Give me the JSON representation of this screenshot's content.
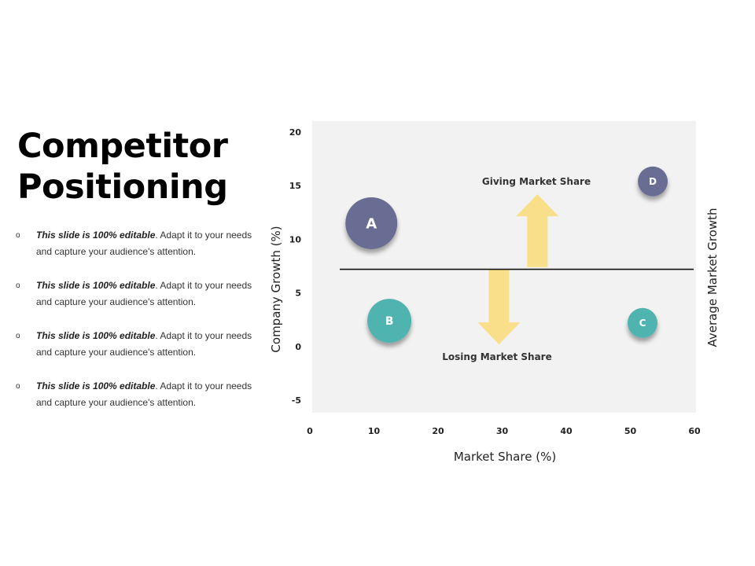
{
  "slide": {
    "title_line1": "Competitor",
    "title_line2": "Positioning",
    "bullet_marker": "o",
    "bullets": [
      {
        "bold": "This slide is 100% editable",
        "text": ". Adapt it to your needs and capture your audience's attention."
      },
      {
        "bold": "This slide is 100% editable",
        "text": ". Adapt it to your needs and capture your audience's attention."
      },
      {
        "bold": "This slide is 100% editable",
        "text": ". Adapt it to your needs and capture your audience's attention."
      },
      {
        "bold": "This slide is 100% editable",
        "text": ". Adapt it to your needs and capture your audience's attention."
      }
    ]
  },
  "chart_data": {
    "type": "scatter",
    "xlabel": "Market Share (%)",
    "ylabel": "Company Growth (%)",
    "right_label": "Average Market Growth",
    "xlim": [
      0,
      60
    ],
    "ylim": [
      -5,
      20
    ],
    "x_ticks": [
      0,
      10,
      20,
      30,
      40,
      50,
      60
    ],
    "y_ticks": [
      20,
      15,
      10,
      5,
      0,
      -5
    ],
    "average_line_y": 7.2,
    "points": [
      {
        "label": "A",
        "x": 9.6,
        "y": 11.5,
        "size": "large",
        "color": "#6a6d93"
      },
      {
        "label": "B",
        "x": 12.4,
        "y": 2.4,
        "size": "medium",
        "color": "#4fb3b0"
      },
      {
        "label": "C",
        "x": 51.9,
        "y": 2.2,
        "size": "small",
        "color": "#4fb3b0"
      },
      {
        "label": "D",
        "x": 53.5,
        "y": 15.4,
        "size": "small",
        "color": "#6a6d93"
      }
    ],
    "annotations": [
      {
        "text": "Giving Market Share",
        "direction": "up",
        "x": 35.5,
        "y_from": 7.4,
        "y_to": 14.2
      },
      {
        "text": "Losing Market Share",
        "direction": "down",
        "x": 29.5,
        "y_from": 7.2,
        "y_to": 0.2
      }
    ],
    "plot_background": "#f2f2f2",
    "arrow_color": "#f9df8a",
    "grid": false
  }
}
